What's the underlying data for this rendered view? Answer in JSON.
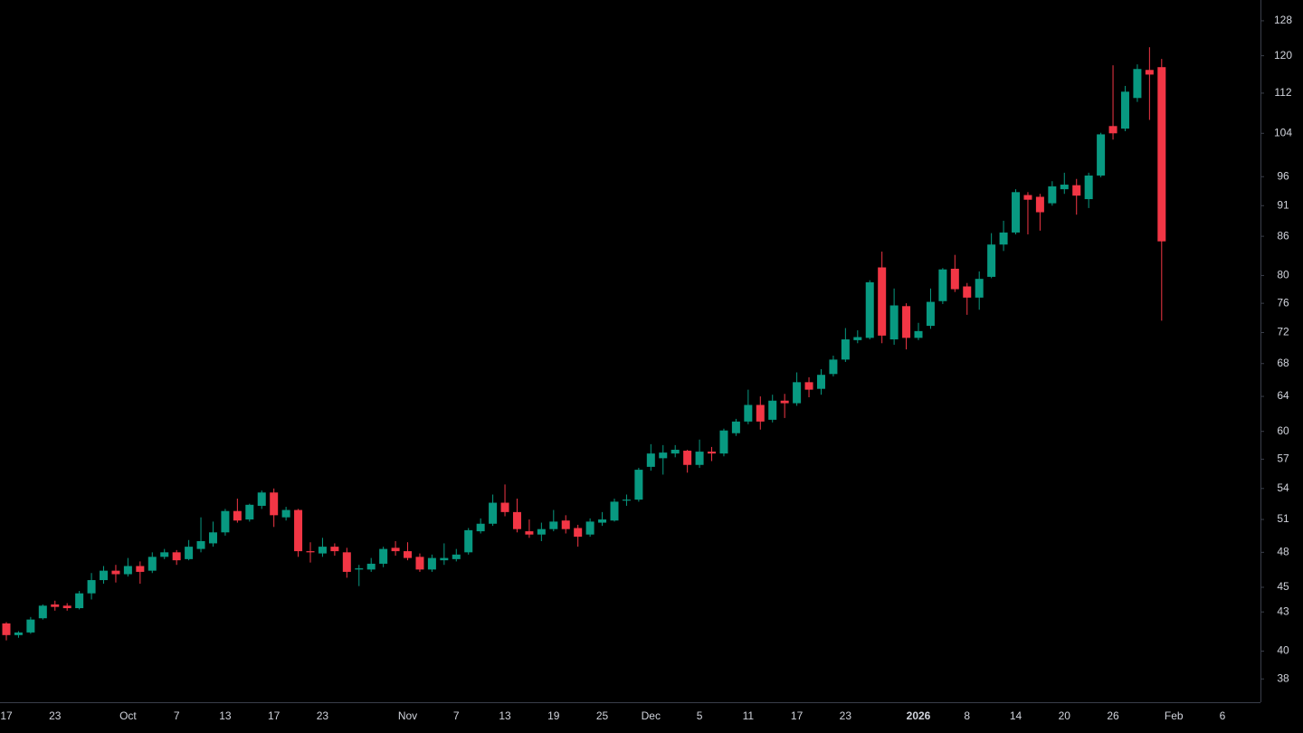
{
  "chart_data": {
    "type": "candlestick",
    "categories": [
      "17",
      null,
      null,
      null,
      "23",
      null,
      null,
      null,
      null,
      null,
      "Oct",
      null,
      null,
      null,
      "7",
      null,
      null,
      null,
      "13",
      null,
      null,
      null,
      "17",
      null,
      null,
      null,
      "23",
      null,
      null,
      null,
      null,
      null,
      null,
      "Nov",
      null,
      null,
      null,
      "7",
      null,
      null,
      null,
      "13",
      null,
      null,
      null,
      "19",
      null,
      null,
      null,
      "25",
      null,
      null,
      null,
      "Dec",
      null,
      null,
      null,
      "5",
      null,
      null,
      null,
      "11",
      null,
      null,
      null,
      "17",
      null,
      null,
      null,
      "23",
      null,
      null,
      null,
      null,
      null,
      "2026",
      null,
      null,
      null,
      "8",
      null,
      null,
      null,
      "14",
      null,
      null,
      null,
      "20",
      null,
      null,
      null,
      "26",
      null,
      null,
      null,
      null,
      "Feb",
      null,
      null,
      null,
      "6"
    ],
    "open": [
      42.1,
      41.2,
      41.4,
      42.5,
      43.6,
      43.5,
      43.3,
      44.5,
      45.6,
      46.4,
      46.1,
      46.8,
      46.4,
      47.6,
      48.0,
      47.4,
      48.3,
      48.8,
      49.8,
      51.8,
      51.0,
      52.3,
      53.6,
      51.2,
      51.9,
      48.1,
      47.9,
      48.5,
      48.0,
      46.5,
      46.5,
      47.0,
      48.4,
      48.1,
      47.6,
      46.5,
      47.3,
      47.4,
      48.0,
      49.9,
      50.6,
      52.6,
      51.7,
      49.9,
      49.6,
      50.1,
      50.9,
      50.2,
      49.6,
      50.7,
      50.9,
      52.8,
      52.9,
      56.2,
      57.1,
      57.6,
      57.9,
      56.4,
      57.8,
      57.6,
      59.8,
      61.1,
      63.0,
      61.3,
      63.5,
      63.2,
      65.7,
      64.9,
      66.7,
      68.5,
      71.0,
      71.3,
      81.2,
      71.1,
      75.6,
      71.3,
      72.9,
      76.3,
      81.0,
      78.4,
      76.8,
      79.8,
      84.7,
      86.6,
      92.8,
      92.5,
      91.4,
      93.8,
      94.5,
      92.1,
      96.2,
      105.4,
      104.9,
      111.0,
      116.9,
      117.5,
      null,
      null,
      null,
      null,
      null
    ],
    "high": [
      42.2,
      41.5,
      42.6,
      43.6,
      43.9,
      43.7,
      44.7,
      46.2,
      46.8,
      46.9,
      47.5,
      47.2,
      48.0,
      48.3,
      48.2,
      49.1,
      51.2,
      50.8,
      52.0,
      53.0,
      52.5,
      53.8,
      54.0,
      52.2,
      52.0,
      48.9,
      49.3,
      48.8,
      48.4,
      46.9,
      47.5,
      48.5,
      49.0,
      48.9,
      47.9,
      47.8,
      48.8,
      48.3,
      50.2,
      51.1,
      53.4,
      54.4,
      53.0,
      51.0,
      50.7,
      51.9,
      51.4,
      50.5,
      51.1,
      51.7,
      53.0,
      53.4,
      56.1,
      58.6,
      58.5,
      58.5,
      58.0,
      59.1,
      58.3,
      60.3,
      61.4,
      64.8,
      64.0,
      64.2,
      64.3,
      66.9,
      66.3,
      67.3,
      69.0,
      72.6,
      72.3,
      79.3,
      83.6,
      78.1,
      76.0,
      73.3,
      78.1,
      81.1,
      83.1,
      78.9,
      80.6,
      86.5,
      88.5,
      93.8,
      93.3,
      93.0,
      95.2,
      96.7,
      95.6,
      96.7,
      104.1,
      117.9,
      113.5,
      118.1,
      121.9,
      119.3,
      null,
      null,
      null,
      null,
      null
    ],
    "low": [
      40.8,
      41.0,
      41.3,
      42.4,
      43.1,
      43.1,
      43.2,
      44.0,
      45.3,
      45.4,
      45.9,
      45.3,
      46.2,
      47.4,
      46.9,
      47.3,
      48.0,
      48.5,
      49.5,
      50.7,
      50.8,
      52.0,
      50.3,
      50.9,
      47.6,
      47.1,
      47.6,
      47.7,
      45.8,
      45.1,
      46.3,
      46.7,
      47.7,
      47.3,
      46.3,
      46.3,
      46.9,
      47.2,
      47.8,
      49.7,
      50.4,
      51.3,
      49.8,
      49.3,
      49.0,
      49.9,
      49.7,
      48.5,
      49.4,
      50.4,
      50.8,
      52.3,
      52.7,
      55.8,
      55.4,
      57.2,
      55.6,
      56.1,
      56.8,
      57.3,
      59.5,
      60.8,
      60.2,
      61.0,
      61.5,
      62.9,
      63.9,
      64.2,
      66.4,
      68.2,
      70.6,
      71.1,
      70.6,
      70.4,
      69.8,
      71.0,
      72.5,
      75.9,
      77.6,
      74.4,
      75.1,
      79.6,
      83.7,
      86.3,
      86.3,
      86.9,
      91.0,
      93.0,
      89.5,
      90.6,
      95.9,
      102.8,
      104.4,
      110.2,
      106.6,
      73.6,
      null,
      null,
      null,
      null,
      null
    ],
    "close": [
      41.2,
      41.4,
      42.4,
      43.5,
      43.4,
      43.3,
      44.5,
      45.6,
      46.4,
      46.1,
      46.8,
      46.3,
      47.6,
      48.0,
      47.3,
      48.5,
      49.0,
      49.8,
      51.8,
      50.9,
      52.4,
      53.6,
      51.4,
      51.9,
      48.1,
      48.0,
      48.5,
      48.1,
      46.3,
      46.6,
      47.0,
      48.3,
      48.1,
      47.5,
      46.5,
      47.5,
      47.5,
      47.8,
      50.0,
      50.6,
      52.6,
      51.7,
      50.1,
      49.6,
      50.1,
      50.8,
      50.1,
      49.4,
      50.8,
      51.0,
      52.7,
      52.9,
      55.9,
      57.6,
      57.7,
      58.0,
      56.4,
      57.8,
      57.6,
      60.1,
      61.1,
      63.0,
      61.1,
      63.5,
      63.2,
      65.7,
      64.8,
      66.6,
      68.5,
      71.1,
      71.4,
      79.0,
      71.6,
      75.7,
      71.3,
      72.2,
      76.2,
      80.9,
      78.0,
      76.8,
      79.5,
      84.7,
      86.6,
      93.3,
      92.0,
      89.9,
      94.3,
      94.6,
      92.7,
      96.2,
      103.8,
      104.0,
      112.3,
      117.1,
      115.9,
      85.2,
      null,
      null,
      null,
      null,
      null
    ],
    "up_color": "#089981",
    "down_color": "#f23645",
    "log_scale": true,
    "grid": false,
    "ylim": [
      36.4,
      133
    ],
    "yticks": [
      38,
      40,
      43,
      45,
      48,
      51,
      54,
      57,
      60,
      64,
      68,
      72,
      76,
      80,
      86,
      91,
      96,
      104,
      112,
      120,
      128
    ]
  }
}
